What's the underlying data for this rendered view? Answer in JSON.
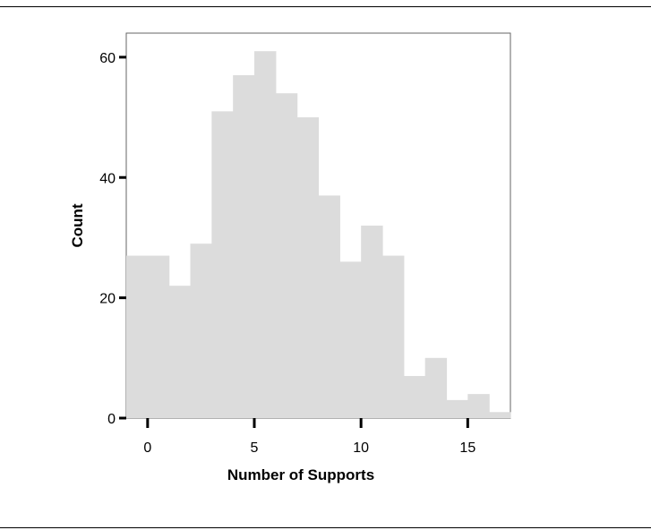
{
  "chart_data": {
    "type": "bar",
    "title": "",
    "xlabel": "Number of Supports",
    "ylabel": "Count",
    "bin_edges": [
      -1,
      0,
      1,
      2,
      3,
      4,
      5,
      6,
      7,
      8,
      9,
      10,
      11,
      12,
      13,
      14,
      15,
      16,
      17
    ],
    "values": [
      27,
      27,
      22,
      29,
      51,
      57,
      61,
      54,
      50,
      37,
      26,
      32,
      27,
      7,
      10,
      3,
      4,
      1
    ],
    "xlim": [
      -1,
      17
    ],
    "ylim": [
      0,
      64
    ],
    "xticks": [
      0,
      5,
      10,
      15
    ],
    "yticks": [
      0,
      20,
      40,
      60
    ],
    "xtick_labels": [
      "0",
      "5",
      "10",
      "15"
    ],
    "ytick_labels": [
      "0",
      "20",
      "40",
      "60"
    ],
    "grid": false,
    "legend": "none",
    "colors": {
      "bar": "#dcdcdc",
      "axis": "#000000",
      "frame": "#666666",
      "background": "#ffffff"
    }
  }
}
